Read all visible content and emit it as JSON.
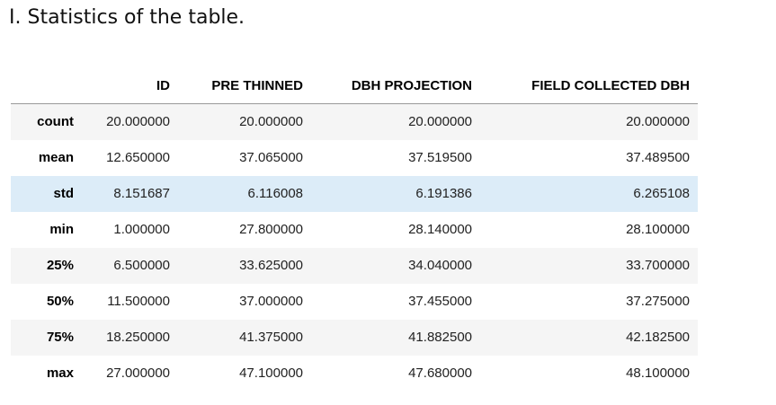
{
  "heading": "I. Statistics of the table.",
  "colors": {
    "stripe": "#f5f5f5",
    "highlight_row": "#dcecf8",
    "header_rule": "#9a9a9a"
  },
  "table": {
    "columns": [
      "",
      "ID",
      "PRE THINNED",
      "DBH PROJECTION",
      "FIELD COLLECTED DBH"
    ],
    "rows": [
      {
        "label": "count",
        "values": [
          "20.000000",
          "20.000000",
          "20.000000",
          "20.000000"
        ]
      },
      {
        "label": "mean",
        "values": [
          "12.650000",
          "37.065000",
          "37.519500",
          "37.489500"
        ]
      },
      {
        "label": "std",
        "values": [
          "8.151687",
          "6.116008",
          "6.191386",
          "6.265108"
        ]
      },
      {
        "label": "min",
        "values": [
          "1.000000",
          "27.800000",
          "28.140000",
          "28.100000"
        ]
      },
      {
        "label": "25%",
        "values": [
          "6.500000",
          "33.625000",
          "34.040000",
          "33.700000"
        ]
      },
      {
        "label": "50%",
        "values": [
          "11.500000",
          "37.000000",
          "37.455000",
          "37.275000"
        ]
      },
      {
        "label": "75%",
        "values": [
          "18.250000",
          "41.375000",
          "41.882500",
          "42.182500"
        ]
      },
      {
        "label": "max",
        "values": [
          "27.000000",
          "47.100000",
          "47.680000",
          "48.100000"
        ]
      }
    ]
  }
}
